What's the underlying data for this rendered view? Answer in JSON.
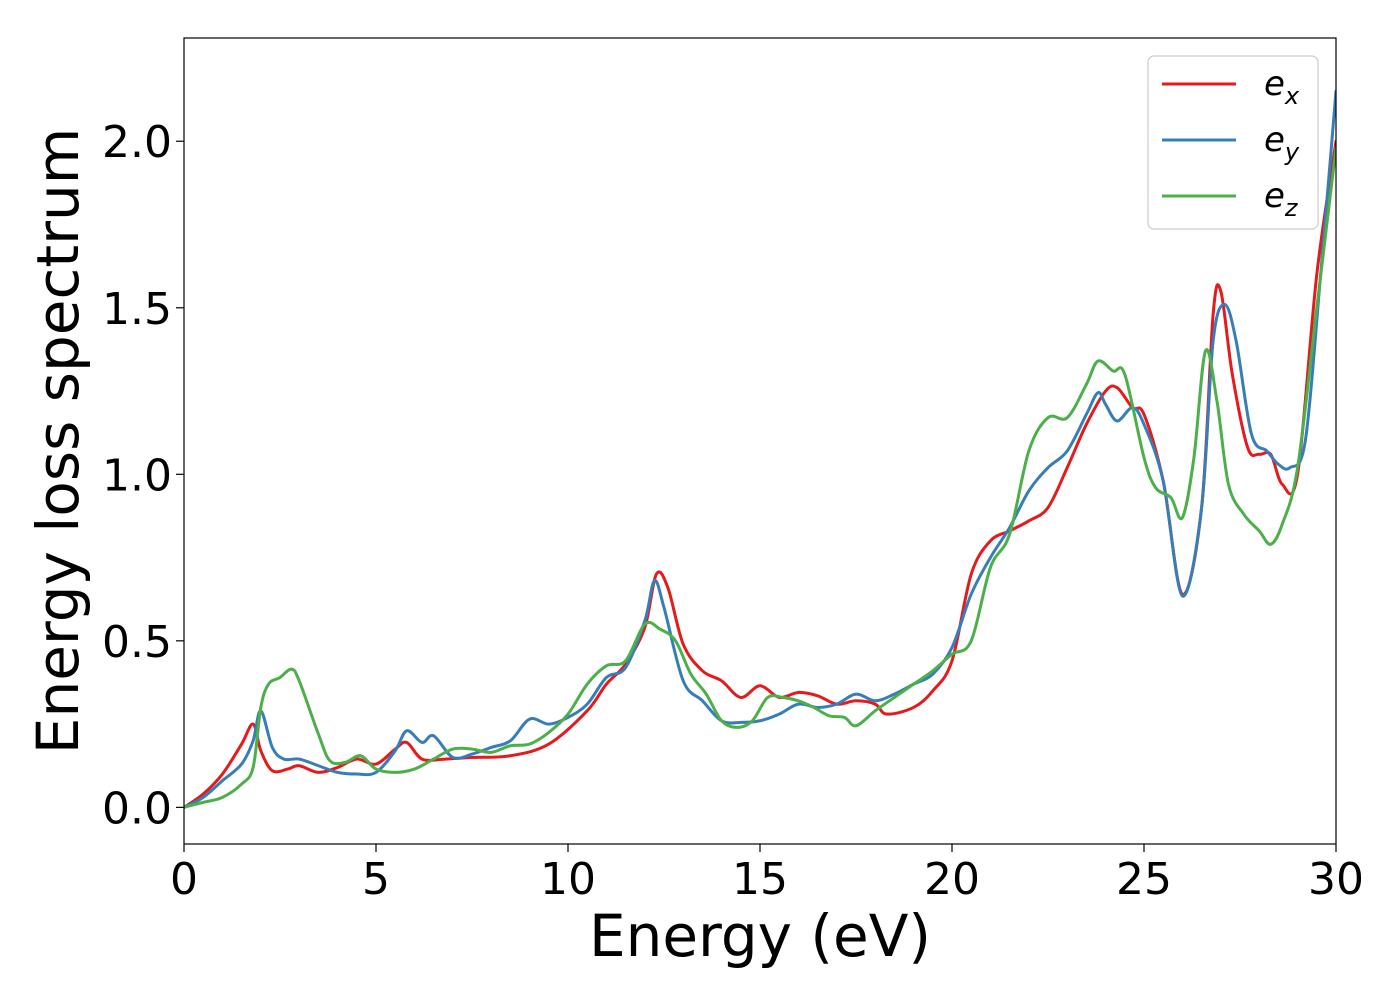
{
  "chart_data": {
    "type": "line",
    "title": "",
    "xlabel": "Energy (eV)",
    "ylabel": "Energy loss spectrum",
    "xlim": [
      0,
      30
    ],
    "ylim": [
      -0.11,
      2.31
    ],
    "xticks": [
      0,
      5,
      10,
      15,
      20,
      25,
      30
    ],
    "xtick_labels": [
      "0",
      "5",
      "10",
      "15",
      "20",
      "25",
      "30"
    ],
    "yticks": [
      0.0,
      0.5,
      1.0,
      1.5,
      2.0
    ],
    "ytick_labels": [
      "0.0",
      "0.5",
      "1.0",
      "1.5",
      "2.0"
    ],
    "grid": false,
    "legend_position": "top-right",
    "series": [
      {
        "name": "e_x",
        "legend_base": "e",
        "legend_sub": "x",
        "color": "#e41a1c",
        "points": [
          [
            0,
            0
          ],
          [
            0.5,
            0.04
          ],
          [
            1.0,
            0.1
          ],
          [
            1.5,
            0.19
          ],
          [
            1.8,
            0.25
          ],
          [
            2.0,
            0.17
          ],
          [
            2.3,
            0.11
          ],
          [
            2.7,
            0.115
          ],
          [
            3.0,
            0.125
          ],
          [
            3.5,
            0.105
          ],
          [
            4.0,
            0.12
          ],
          [
            4.5,
            0.145
          ],
          [
            5.0,
            0.13
          ],
          [
            5.5,
            0.175
          ],
          [
            5.8,
            0.195
          ],
          [
            6.2,
            0.145
          ],
          [
            6.8,
            0.145
          ],
          [
            7.5,
            0.15
          ],
          [
            8.5,
            0.155
          ],
          [
            9.5,
            0.19
          ],
          [
            10.5,
            0.29
          ],
          [
            11.0,
            0.37
          ],
          [
            11.5,
            0.43
          ],
          [
            12.0,
            0.54
          ],
          [
            12.3,
            0.7
          ],
          [
            12.6,
            0.66
          ],
          [
            13.0,
            0.49
          ],
          [
            13.5,
            0.41
          ],
          [
            14.0,
            0.38
          ],
          [
            14.5,
            0.33
          ],
          [
            15.0,
            0.365
          ],
          [
            15.5,
            0.33
          ],
          [
            16.0,
            0.345
          ],
          [
            16.5,
            0.335
          ],
          [
            17.0,
            0.31
          ],
          [
            17.5,
            0.32
          ],
          [
            18.0,
            0.31
          ],
          [
            18.3,
            0.28
          ],
          [
            19.0,
            0.3
          ],
          [
            19.5,
            0.35
          ],
          [
            20.0,
            0.44
          ],
          [
            20.5,
            0.7
          ],
          [
            21.0,
            0.8
          ],
          [
            21.5,
            0.83
          ],
          [
            22.0,
            0.86
          ],
          [
            22.5,
            0.9
          ],
          [
            23.0,
            1.02
          ],
          [
            23.5,
            1.15
          ],
          [
            24.0,
            1.25
          ],
          [
            24.3,
            1.26
          ],
          [
            24.7,
            1.2
          ],
          [
            25.0,
            1.18
          ],
          [
            25.5,
            0.98
          ],
          [
            26.0,
            0.64
          ],
          [
            26.5,
            0.9
          ],
          [
            26.8,
            1.48
          ],
          [
            27.0,
            1.55
          ],
          [
            27.3,
            1.3
          ],
          [
            27.7,
            1.08
          ],
          [
            28.0,
            1.06
          ],
          [
            28.3,
            1.06
          ],
          [
            28.6,
            0.97
          ],
          [
            29.0,
            1.0
          ],
          [
            29.5,
            1.6
          ],
          [
            30.0,
            2.0
          ]
        ]
      },
      {
        "name": "e_y",
        "legend_base": "e",
        "legend_sub": "y",
        "color": "#377eb8",
        "points": [
          [
            0,
            0
          ],
          [
            0.5,
            0.03
          ],
          [
            1.0,
            0.08
          ],
          [
            1.5,
            0.13
          ],
          [
            1.8,
            0.2
          ],
          [
            2.0,
            0.29
          ],
          [
            2.3,
            0.18
          ],
          [
            2.6,
            0.145
          ],
          [
            3.0,
            0.145
          ],
          [
            3.5,
            0.125
          ],
          [
            4.0,
            0.105
          ],
          [
            4.5,
            0.1
          ],
          [
            5.0,
            0.105
          ],
          [
            5.5,
            0.17
          ],
          [
            5.8,
            0.23
          ],
          [
            6.2,
            0.195
          ],
          [
            6.5,
            0.215
          ],
          [
            7.0,
            0.15
          ],
          [
            7.5,
            0.16
          ],
          [
            8.0,
            0.18
          ],
          [
            8.5,
            0.2
          ],
          [
            9.0,
            0.265
          ],
          [
            9.5,
            0.25
          ],
          [
            10.0,
            0.27
          ],
          [
            10.5,
            0.31
          ],
          [
            11.0,
            0.39
          ],
          [
            11.5,
            0.42
          ],
          [
            12.0,
            0.56
          ],
          [
            12.25,
            0.68
          ],
          [
            12.5,
            0.6
          ],
          [
            13.0,
            0.38
          ],
          [
            13.5,
            0.32
          ],
          [
            14.0,
            0.26
          ],
          [
            14.5,
            0.255
          ],
          [
            15.0,
            0.26
          ],
          [
            15.5,
            0.28
          ],
          [
            16.0,
            0.31
          ],
          [
            16.5,
            0.3
          ],
          [
            17.0,
            0.31
          ],
          [
            17.5,
            0.34
          ],
          [
            18.0,
            0.32
          ],
          [
            18.5,
            0.34
          ],
          [
            19.0,
            0.37
          ],
          [
            19.5,
            0.4
          ],
          [
            20.0,
            0.48
          ],
          [
            20.5,
            0.64
          ],
          [
            21.0,
            0.75
          ],
          [
            21.5,
            0.84
          ],
          [
            22.0,
            0.95
          ],
          [
            22.5,
            1.02
          ],
          [
            23.0,
            1.07
          ],
          [
            23.5,
            1.18
          ],
          [
            23.8,
            1.245
          ],
          [
            24.0,
            1.21
          ],
          [
            24.3,
            1.16
          ],
          [
            24.7,
            1.2
          ],
          [
            25.0,
            1.15
          ],
          [
            25.5,
            0.98
          ],
          [
            26.0,
            0.635
          ],
          [
            26.5,
            0.9
          ],
          [
            26.8,
            1.4
          ],
          [
            27.1,
            1.51
          ],
          [
            27.4,
            1.4
          ],
          [
            27.8,
            1.12
          ],
          [
            28.2,
            1.07
          ],
          [
            28.5,
            1.03
          ],
          [
            28.8,
            1.02
          ],
          [
            29.2,
            1.1
          ],
          [
            29.6,
            1.6
          ],
          [
            30.0,
            2.15
          ]
        ]
      },
      {
        "name": "e_z",
        "legend_base": "e",
        "legend_sub": "z",
        "color": "#4daf4a",
        "points": [
          [
            0,
            0
          ],
          [
            0.5,
            0.015
          ],
          [
            1.0,
            0.03
          ],
          [
            1.5,
            0.07
          ],
          [
            1.8,
            0.12
          ],
          [
            2.0,
            0.3
          ],
          [
            2.2,
            0.37
          ],
          [
            2.5,
            0.39
          ],
          [
            2.8,
            0.415
          ],
          [
            3.0,
            0.38
          ],
          [
            3.5,
            0.22
          ],
          [
            3.8,
            0.14
          ],
          [
            4.2,
            0.135
          ],
          [
            4.6,
            0.155
          ],
          [
            5.0,
            0.115
          ],
          [
            5.5,
            0.105
          ],
          [
            6.0,
            0.115
          ],
          [
            6.5,
            0.145
          ],
          [
            7.0,
            0.175
          ],
          [
            7.5,
            0.175
          ],
          [
            8.0,
            0.165
          ],
          [
            8.5,
            0.185
          ],
          [
            9.0,
            0.19
          ],
          [
            9.5,
            0.225
          ],
          [
            10.0,
            0.28
          ],
          [
            10.5,
            0.37
          ],
          [
            11.0,
            0.425
          ],
          [
            11.5,
            0.44
          ],
          [
            12.0,
            0.55
          ],
          [
            12.4,
            0.535
          ],
          [
            12.8,
            0.5
          ],
          [
            13.2,
            0.4
          ],
          [
            13.6,
            0.34
          ],
          [
            14.0,
            0.26
          ],
          [
            14.4,
            0.24
          ],
          [
            14.8,
            0.26
          ],
          [
            15.2,
            0.33
          ],
          [
            15.6,
            0.33
          ],
          [
            16.0,
            0.32
          ],
          [
            16.4,
            0.3
          ],
          [
            16.8,
            0.275
          ],
          [
            17.2,
            0.27
          ],
          [
            17.5,
            0.245
          ],
          [
            18.0,
            0.29
          ],
          [
            18.5,
            0.33
          ],
          [
            19.0,
            0.37
          ],
          [
            19.5,
            0.41
          ],
          [
            20.0,
            0.46
          ],
          [
            20.5,
            0.5
          ],
          [
            21.0,
            0.72
          ],
          [
            21.5,
            0.82
          ],
          [
            22.0,
            1.07
          ],
          [
            22.5,
            1.17
          ],
          [
            23.0,
            1.17
          ],
          [
            23.5,
            1.27
          ],
          [
            23.8,
            1.34
          ],
          [
            24.2,
            1.31
          ],
          [
            24.5,
            1.3
          ],
          [
            25.0,
            1.05
          ],
          [
            25.3,
            0.96
          ],
          [
            25.7,
            0.93
          ],
          [
            26.0,
            0.87
          ],
          [
            26.3,
            1.05
          ],
          [
            26.6,
            1.37
          ],
          [
            26.9,
            1.22
          ],
          [
            27.2,
            0.97
          ],
          [
            27.6,
            0.88
          ],
          [
            28.0,
            0.83
          ],
          [
            28.3,
            0.79
          ],
          [
            28.6,
            0.85
          ],
          [
            29.0,
            1.02
          ],
          [
            29.5,
            1.5
          ],
          [
            30.0,
            1.98
          ]
        ]
      }
    ]
  }
}
